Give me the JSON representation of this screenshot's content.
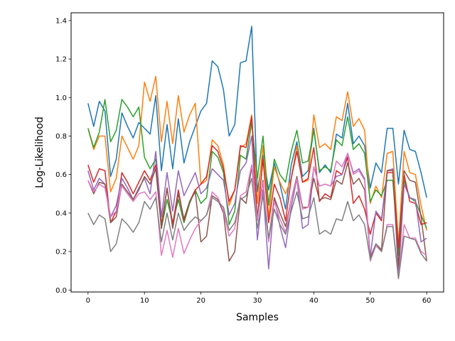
{
  "chart_data": {
    "type": "line",
    "title": "",
    "xlabel": "Samples",
    "ylabel": "Log-Likelihood",
    "xlim": [
      -3,
      63
    ],
    "ylim": [
      -0.01,
      1.44
    ],
    "xticks": [
      0,
      10,
      20,
      30,
      40,
      50,
      60
    ],
    "yticks": [
      0.0,
      0.2,
      0.4,
      0.6,
      0.8,
      1.0,
      1.2,
      1.4
    ],
    "ytick_labels": [
      "0.0",
      "0.2",
      "0.4",
      "0.6",
      "0.8",
      "1.0",
      "1.2",
      "1.4"
    ],
    "grid": false,
    "legend": "none",
    "series": [
      {
        "color": "#1f77b4",
        "values": [
          0.97,
          0.85,
          0.98,
          0.93,
          0.59,
          0.68,
          0.92,
          0.85,
          0.79,
          0.87,
          0.84,
          0.81,
          1.01,
          0.62,
          0.86,
          0.63,
          0.89,
          0.66,
          0.77,
          0.85,
          0.93,
          0.97,
          1.19,
          1.16,
          1.04,
          0.8,
          0.86,
          1.18,
          1.19,
          1.37,
          0.51,
          0.7,
          0.52,
          0.66,
          0.55,
          0.42,
          0.65,
          0.77,
          0.59,
          0.62,
          0.84,
          0.61,
          0.65,
          0.61,
          0.81,
          0.79,
          0.97,
          0.76,
          0.8,
          0.75,
          0.53,
          0.66,
          0.61,
          0.84,
          0.84,
          0.55,
          0.83,
          0.73,
          0.72,
          0.61,
          0.48
        ]
      },
      {
        "color": "#ff7f0e",
        "values": [
          0.84,
          0.73,
          0.8,
          0.8,
          0.51,
          0.58,
          0.8,
          0.74,
          0.68,
          0.75,
          1.08,
          0.98,
          1.11,
          0.77,
          0.98,
          0.76,
          1.01,
          0.82,
          0.91,
          0.97,
          0.55,
          0.57,
          0.78,
          0.75,
          0.65,
          0.44,
          0.52,
          0.74,
          0.76,
          0.91,
          0.45,
          0.75,
          0.38,
          0.64,
          0.56,
          0.5,
          0.58,
          0.75,
          0.56,
          0.57,
          0.91,
          0.74,
          0.76,
          0.73,
          0.9,
          0.88,
          1.03,
          0.85,
          0.89,
          0.83,
          0.45,
          0.54,
          0.48,
          0.71,
          0.72,
          0.24,
          0.72,
          0.61,
          0.6,
          0.44,
          0.31
        ]
      },
      {
        "color": "#2ca02c",
        "values": [
          0.84,
          0.74,
          0.82,
          0.99,
          0.77,
          0.83,
          0.99,
          0.95,
          0.9,
          0.95,
          0.69,
          0.63,
          0.68,
          0.32,
          0.47,
          0.35,
          0.47,
          0.35,
          0.45,
          0.52,
          0.45,
          0.48,
          0.72,
          0.69,
          0.61,
          0.34,
          0.41,
          0.7,
          0.68,
          0.87,
          0.58,
          0.8,
          0.44,
          0.68,
          0.6,
          0.56,
          0.72,
          0.83,
          0.66,
          0.67,
          0.83,
          0.62,
          0.64,
          0.62,
          0.78,
          0.75,
          0.9,
          0.73,
          0.76,
          0.71,
          0.46,
          0.52,
          0.49,
          0.57,
          0.57,
          0.18,
          0.57,
          0.48,
          0.46,
          0.39,
          0.32
        ]
      },
      {
        "color": "#d62728",
        "values": [
          0.65,
          0.56,
          0.63,
          0.62,
          0.35,
          0.41,
          0.61,
          0.56,
          0.5,
          0.56,
          0.62,
          0.57,
          0.65,
          0.34,
          0.53,
          0.34,
          0.52,
          0.36,
          0.46,
          0.52,
          0.55,
          0.59,
          0.75,
          0.72,
          0.63,
          0.46,
          0.52,
          0.75,
          0.74,
          0.9,
          0.37,
          0.68,
          0.35,
          0.55,
          0.48,
          0.36,
          0.58,
          0.72,
          0.56,
          0.58,
          0.74,
          0.46,
          0.5,
          0.48,
          0.62,
          0.6,
          0.69,
          0.45,
          0.49,
          0.42,
          0.29,
          0.4,
          0.36,
          0.61,
          0.61,
          0.22,
          0.6,
          0.46,
          0.45,
          0.34,
          0.35
        ]
      },
      {
        "color": "#9467bd",
        "values": [
          0.62,
          0.52,
          0.58,
          0.55,
          0.38,
          0.44,
          0.58,
          0.53,
          0.47,
          0.53,
          0.58,
          0.5,
          0.72,
          0.38,
          0.61,
          0.41,
          0.62,
          0.49,
          0.55,
          0.61,
          0.5,
          0.53,
          0.63,
          0.6,
          0.57,
          0.39,
          0.45,
          0.62,
          0.66,
          0.8,
          0.26,
          0.52,
          0.11,
          0.48,
          0.33,
          0.22,
          0.43,
          0.58,
          0.32,
          0.34,
          0.64,
          0.54,
          0.55,
          0.54,
          0.59,
          0.6,
          0.71,
          0.61,
          0.63,
          0.58,
          0.17,
          0.41,
          0.37,
          0.62,
          0.63,
          0.07,
          0.55,
          0.48,
          0.47,
          0.25,
          0.27
        ]
      },
      {
        "color": "#8c564b",
        "values": [
          0.57,
          0.5,
          0.56,
          0.55,
          0.35,
          0.38,
          0.55,
          0.51,
          0.47,
          0.52,
          0.59,
          0.55,
          0.63,
          0.32,
          0.53,
          0.32,
          0.5,
          0.37,
          0.46,
          0.51,
          0.25,
          0.28,
          0.49,
          0.47,
          0.4,
          0.15,
          0.2,
          0.48,
          0.45,
          0.64,
          0.38,
          0.57,
          0.26,
          0.48,
          0.4,
          0.33,
          0.47,
          0.59,
          0.43,
          0.43,
          0.58,
          0.47,
          0.48,
          0.47,
          0.57,
          0.55,
          0.66,
          0.55,
          0.58,
          0.52,
          0.17,
          0.24,
          0.21,
          0.62,
          0.62,
          0.12,
          0.62,
          0.57,
          0.56,
          0.38,
          0.15
        ]
      },
      {
        "color": "#e377c2",
        "values": [
          0.57,
          0.51,
          0.55,
          0.53,
          0.38,
          0.41,
          0.54,
          0.5,
          0.46,
          0.5,
          0.51,
          0.47,
          0.51,
          0.18,
          0.31,
          0.17,
          0.32,
          0.19,
          0.26,
          0.32,
          0.36,
          0.39,
          0.51,
          0.48,
          0.41,
          0.28,
          0.32,
          0.49,
          0.51,
          0.65,
          0.36,
          0.56,
          0.25,
          0.46,
          0.37,
          0.3,
          0.47,
          0.58,
          0.42,
          0.43,
          0.64,
          0.54,
          0.55,
          0.54,
          0.67,
          0.64,
          0.71,
          0.6,
          0.62,
          0.57,
          0.15,
          0.23,
          0.2,
          0.34,
          0.34,
          0.06,
          0.34,
          0.27,
          0.27,
          0.2,
          0.18
        ]
      },
      {
        "color": "#7f7f7f",
        "values": [
          0.4,
          0.34,
          0.39,
          0.37,
          0.2,
          0.24,
          0.37,
          0.34,
          0.3,
          0.35,
          0.46,
          0.42,
          0.48,
          0.25,
          0.4,
          0.26,
          0.4,
          0.31,
          0.35,
          0.38,
          0.36,
          0.39,
          0.48,
          0.46,
          0.43,
          0.31,
          0.35,
          0.47,
          0.49,
          0.58,
          0.32,
          0.49,
          0.27,
          0.42,
          0.34,
          0.29,
          0.41,
          0.51,
          0.37,
          0.38,
          0.48,
          0.29,
          0.31,
          0.29,
          0.37,
          0.36,
          0.46,
          0.36,
          0.39,
          0.34,
          0.16,
          0.24,
          0.2,
          0.33,
          0.33,
          0.06,
          0.28,
          0.27,
          0.26,
          0.19,
          0.15
        ]
      }
    ]
  }
}
